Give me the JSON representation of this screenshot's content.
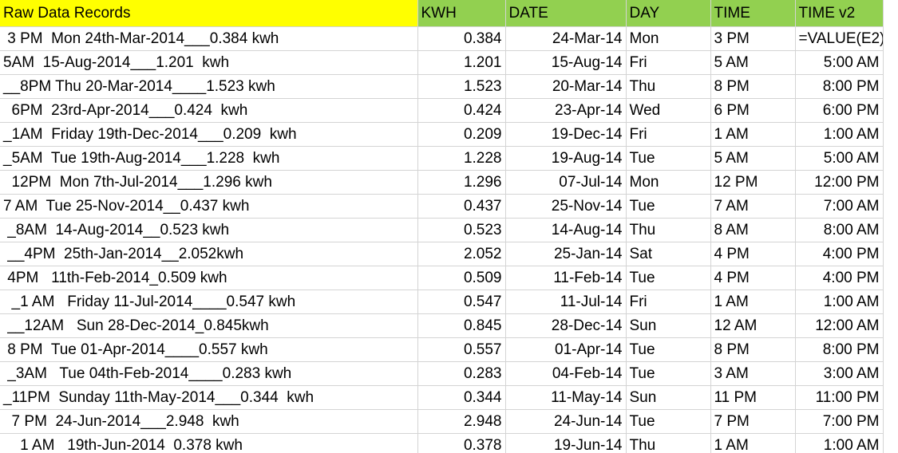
{
  "headers": {
    "raw": "Raw Data Records",
    "kwh": "KWH",
    "date": "DATE",
    "day": "DAY",
    "time": "TIME",
    "time_v2": "TIME v2"
  },
  "colors": {
    "raw_header_bg": "#ffff00",
    "green_header_bg": "#92d050",
    "gridline": "#d4d4d4"
  },
  "rows": [
    {
      "raw": " 3 PM  Mon 24th-Mar-2014___0.384 kwh",
      "kwh": "0.384",
      "date": "24-Mar-14",
      "day": "Mon",
      "time": "3 PM",
      "time_v2": "=VALUE(E2)"
    },
    {
      "raw": "5AM  15-Aug-2014___1.201  kwh",
      "kwh": "1.201",
      "date": "15-Aug-14",
      "day": "Fri",
      "time": "5 AM",
      "time_v2": "5:00 AM"
    },
    {
      "raw": "__8PM Thu 20-Mar-2014____1.523 kwh",
      "kwh": "1.523",
      "date": "20-Mar-14",
      "day": "Thu",
      "time": "8 PM",
      "time_v2": "8:00 PM"
    },
    {
      "raw": "  6PM  23rd-Apr-2014___0.424  kwh",
      "kwh": "0.424",
      "date": "23-Apr-14",
      "day": "Wed",
      "time": "6 PM",
      "time_v2": "6:00 PM"
    },
    {
      "raw": "_1AM  Friday 19th-Dec-2014___0.209  kwh",
      "kwh": "0.209",
      "date": "19-Dec-14",
      "day": "Fri",
      "time": "1 AM",
      "time_v2": "1:00 AM"
    },
    {
      "raw": "_5AM  Tue 19th-Aug-2014___1.228  kwh",
      "kwh": "1.228",
      "date": "19-Aug-14",
      "day": "Tue",
      "time": "5 AM",
      "time_v2": "5:00 AM"
    },
    {
      "raw": "  12PM  Mon 7th-Jul-2014___1.296 kwh",
      "kwh": "1.296",
      "date": "07-Jul-14",
      "day": "Mon",
      "time": "12 PM",
      "time_v2": "12:00 PM"
    },
    {
      "raw": "7 AM  Tue 25-Nov-2014__0.437 kwh",
      "kwh": "0.437",
      "date": "25-Nov-14",
      "day": "Tue",
      "time": "7 AM",
      "time_v2": "7:00 AM"
    },
    {
      "raw": " _8AM  14-Aug-2014__0.523 kwh",
      "kwh": "0.523",
      "date": "14-Aug-14",
      "day": "Thu",
      "time": "8 AM",
      "time_v2": "8:00 AM"
    },
    {
      "raw": " __4PM  25th-Jan-2014__2.052kwh",
      "kwh": "2.052",
      "date": "25-Jan-14",
      "day": "Sat",
      "time": "4 PM",
      "time_v2": "4:00 PM"
    },
    {
      "raw": " 4PM   11th-Feb-2014_0.509 kwh",
      "kwh": "0.509",
      "date": "11-Feb-14",
      "day": "Tue",
      "time": "4 PM",
      "time_v2": "4:00 PM"
    },
    {
      "raw": "  _1 AM   Friday 11-Jul-2014____0.547 kwh",
      "kwh": "0.547",
      "date": "11-Jul-14",
      "day": "Fri",
      "time": "1 AM",
      "time_v2": "1:00 AM"
    },
    {
      "raw": " __12AM   Sun 28-Dec-2014_0.845kwh",
      "kwh": "0.845",
      "date": "28-Dec-14",
      "day": "Sun",
      "time": "12 AM",
      "time_v2": "12:00 AM"
    },
    {
      "raw": " 8 PM  Tue 01-Apr-2014____0.557 kwh",
      "kwh": "0.557",
      "date": "01-Apr-14",
      "day": "Tue",
      "time": "8 PM",
      "time_v2": "8:00 PM"
    },
    {
      "raw": " _3AM   Tue 04th-Feb-2014____0.283 kwh",
      "kwh": "0.283",
      "date": "04-Feb-14",
      "day": "Tue",
      "time": "3 AM",
      "time_v2": "3:00 AM"
    },
    {
      "raw": "_11PM  Sunday 11th-May-2014___0.344  kwh",
      "kwh": "0.344",
      "date": "11-May-14",
      "day": "Sun",
      "time": "11 PM",
      "time_v2": "11:00 PM"
    },
    {
      "raw": "  7 PM  24-Jun-2014___2.948  kwh",
      "kwh": "2.948",
      "date": "24-Jun-14",
      "day": "Tue",
      "time": "7 PM",
      "time_v2": "7:00 PM"
    },
    {
      "raw": "    1 AM   19th-Jun-2014  0.378 kwh",
      "kwh": "0.378",
      "date": "19-Jun-14",
      "day": "Thu",
      "time": "1 AM",
      "time_v2": "1:00 AM"
    }
  ]
}
